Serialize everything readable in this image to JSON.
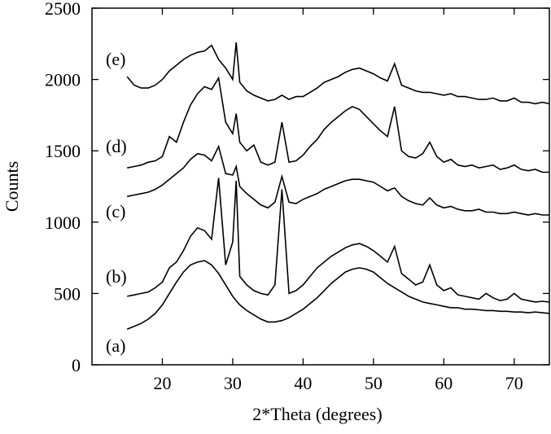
{
  "chart_data": {
    "type": "line",
    "xlabel": "2*Theta  (degrees)",
    "ylabel": "Counts",
    "xlim": [
      10,
      75
    ],
    "ylim": [
      0,
      2500
    ],
    "xticks": [
      20,
      30,
      40,
      50,
      60,
      70
    ],
    "yticks": [
      0,
      500,
      1000,
      1500,
      2000,
      2500
    ],
    "x": [
      15,
      16,
      17,
      18,
      19,
      20,
      21,
      22,
      23,
      24,
      25,
      26,
      27,
      28,
      29,
      30,
      30.5,
      31,
      32,
      33,
      34,
      35,
      36,
      37,
      38,
      39,
      40,
      41,
      42,
      43,
      44,
      45,
      46,
      47,
      48,
      49,
      50,
      51,
      52,
      53,
      54,
      55,
      56,
      57,
      58,
      59,
      60,
      61,
      62,
      63,
      64,
      65,
      66,
      67,
      68,
      69,
      70,
      71,
      72,
      73,
      74,
      75
    ],
    "series": [
      {
        "name": "(a)",
        "color": "#000000",
        "values": [
          250,
          270,
          290,
          320,
          360,
          420,
          500,
          580,
          650,
          700,
          720,
          730,
          700,
          640,
          560,
          480,
          450,
          420,
          380,
          350,
          320,
          300,
          300,
          310,
          330,
          360,
          390,
          430,
          470,
          520,
          570,
          610,
          650,
          670,
          680,
          670,
          650,
          610,
          570,
          540,
          510,
          480,
          460,
          440,
          430,
          420,
          410,
          400,
          400,
          390,
          390,
          385,
          380,
          380,
          375,
          375,
          370,
          370,
          365,
          370,
          365,
          360
        ]
      },
      {
        "name": "(b)",
        "color": "#000000",
        "values": [
          480,
          490,
          500,
          510,
          540,
          580,
          680,
          720,
          800,
          900,
          960,
          940,
          880,
          1310,
          700,
          860,
          1290,
          620,
          560,
          520,
          500,
          490,
          560,
          1230,
          500,
          520,
          560,
          620,
          680,
          720,
          760,
          790,
          820,
          840,
          850,
          830,
          800,
          760,
          720,
          830,
          640,
          600,
          560,
          580,
          700,
          560,
          520,
          540,
          490,
          480,
          470,
          460,
          500,
          470,
          450,
          460,
          500,
          460,
          450,
          440,
          445,
          440
        ]
      },
      {
        "name": "(c)",
        "color": "#000000",
        "values": [
          1180,
          1190,
          1200,
          1210,
          1230,
          1260,
          1300,
          1340,
          1380,
          1440,
          1480,
          1470,
          1430,
          1530,
          1340,
          1330,
          1390,
          1250,
          1200,
          1160,
          1120,
          1100,
          1140,
          1320,
          1140,
          1130,
          1160,
          1180,
          1200,
          1230,
          1250,
          1270,
          1290,
          1300,
          1300,
          1290,
          1280,
          1250,
          1220,
          1240,
          1180,
          1150,
          1130,
          1120,
          1170,
          1120,
          1100,
          1110,
          1090,
          1080,
          1080,
          1090,
          1070,
          1070,
          1060,
          1060,
          1070,
          1060,
          1050,
          1060,
          1050,
          1050
        ]
      },
      {
        "name": "(d)",
        "color": "#000000",
        "values": [
          1380,
          1390,
          1400,
          1420,
          1430,
          1460,
          1600,
          1560,
          1700,
          1820,
          1900,
          1950,
          1930,
          2010,
          1700,
          1620,
          1760,
          1560,
          1500,
          1540,
          1420,
          1400,
          1420,
          1700,
          1420,
          1430,
          1470,
          1530,
          1580,
          1650,
          1700,
          1740,
          1780,
          1810,
          1790,
          1740,
          1690,
          1640,
          1600,
          1810,
          1500,
          1460,
          1450,
          1480,
          1560,
          1460,
          1420,
          1440,
          1400,
          1390,
          1400,
          1380,
          1390,
          1400,
          1370,
          1380,
          1400,
          1370,
          1360,
          1370,
          1350,
          1350
        ]
      },
      {
        "name": "(e)",
        "color": "#000000",
        "values": [
          2020,
          1960,
          1940,
          1940,
          1960,
          2000,
          2060,
          2100,
          2140,
          2170,
          2190,
          2200,
          2240,
          2140,
          2080,
          2000,
          2260,
          1980,
          1920,
          1890,
          1870,
          1850,
          1860,
          1890,
          1860,
          1880,
          1880,
          1910,
          1940,
          1980,
          2000,
          2020,
          2050,
          2070,
          2080,
          2060,
          2040,
          2010,
          1990,
          2110,
          1960,
          1940,
          1920,
          1910,
          1910,
          1900,
          1890,
          1900,
          1880,
          1880,
          1870,
          1860,
          1860,
          1870,
          1850,
          1850,
          1870,
          1840,
          1840,
          1830,
          1840,
          1830
        ]
      }
    ]
  }
}
